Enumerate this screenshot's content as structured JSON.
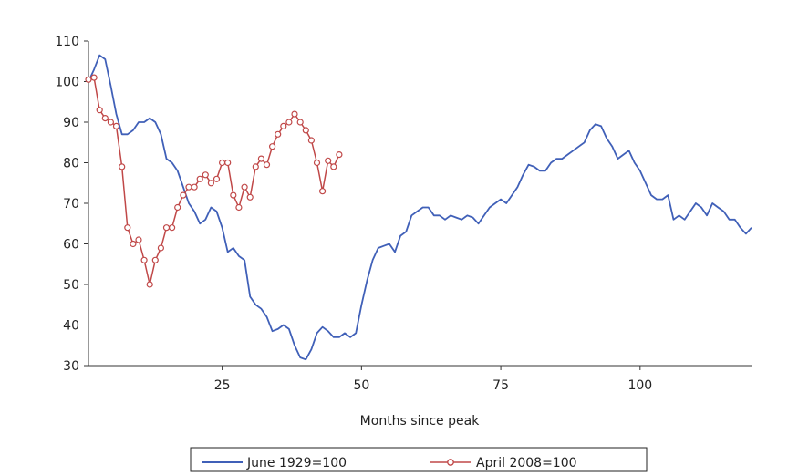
{
  "chart_data": {
    "type": "line",
    "title": "",
    "xlabel": "Months since peak",
    "ylabel": "",
    "xlim": [
      1,
      120
    ],
    "ylim": [
      30,
      110
    ],
    "xticks": [
      25,
      50,
      75,
      100
    ],
    "yticks": [
      30,
      40,
      50,
      60,
      70,
      80,
      90,
      100,
      110
    ],
    "grid": false,
    "legend": {
      "position": "bottom"
    },
    "series": [
      {
        "name": "June 1929=100",
        "color": "#4060b8",
        "marker": "none",
        "x": [
          1,
          2,
          3,
          4,
          5,
          6,
          7,
          8,
          9,
          10,
          11,
          12,
          13,
          14,
          15,
          16,
          17,
          18,
          19,
          20,
          21,
          22,
          23,
          24,
          25,
          26,
          27,
          28,
          29,
          30,
          31,
          32,
          33,
          34,
          35,
          36,
          37,
          38,
          39,
          40,
          41,
          42,
          43,
          44,
          45,
          46,
          47,
          48,
          49,
          50,
          51,
          52,
          53,
          54,
          55,
          56,
          57,
          58,
          59,
          60,
          61,
          62,
          63,
          64,
          65,
          66,
          67,
          68,
          69,
          70,
          71,
          72,
          73,
          74,
          75,
          76,
          77,
          78,
          79,
          80,
          81,
          82,
          83,
          84,
          85,
          86,
          87,
          88,
          89,
          90,
          91,
          92,
          93,
          94,
          95,
          96,
          97,
          98,
          99,
          100,
          101,
          102,
          103,
          104,
          105,
          106,
          107,
          108,
          109,
          110,
          111,
          112,
          113,
          114,
          115,
          116,
          117,
          118,
          119,
          120
        ],
        "y": [
          100,
          103,
          106.5,
          105.5,
          99,
          92,
          87,
          87,
          88,
          90,
          90,
          91,
          90,
          87,
          81,
          80,
          78,
          74,
          70,
          68,
          65,
          66,
          69,
          68,
          64,
          58,
          59,
          57,
          56,
          47,
          45,
          44,
          42,
          38.5,
          39,
          40,
          39,
          35,
          32,
          31.5,
          34,
          38,
          39.5,
          38.5,
          37,
          37,
          38,
          37,
          38,
          45,
          51,
          56,
          59,
          59.5,
          60,
          58,
          62,
          63,
          67,
          68,
          69,
          69,
          67,
          67,
          66,
          67,
          66.5,
          66,
          67,
          66.5,
          65,
          67,
          69,
          70,
          71,
          70,
          72,
          74,
          77,
          79.5,
          79,
          78,
          78,
          80,
          81,
          81,
          82,
          83,
          84,
          85,
          88,
          89.5,
          89,
          86,
          84,
          81,
          82,
          83,
          80,
          78,
          75,
          72,
          71,
          71,
          72,
          66,
          67,
          66,
          68,
          70,
          69,
          67,
          70,
          69,
          68,
          66,
          66,
          64,
          62.5,
          64
        ]
      },
      {
        "name": "April 2008=100",
        "color": "#c04848",
        "marker": "circle",
        "x": [
          1,
          2,
          3,
          4,
          5,
          6,
          7,
          8,
          9,
          10,
          11,
          12,
          13,
          14,
          15,
          16,
          17,
          18,
          19,
          20,
          21,
          22,
          23,
          24,
          25,
          26,
          27,
          28,
          29,
          30,
          31,
          32,
          33,
          34,
          35,
          36,
          37,
          38,
          39,
          40,
          41,
          42,
          43,
          44,
          45,
          46
        ],
        "y": [
          100.5,
          101,
          93,
          91,
          90,
          89,
          79,
          64,
          60,
          61,
          56,
          50,
          56,
          59,
          64,
          64,
          69,
          72,
          74,
          74,
          76,
          77,
          75,
          76,
          80,
          80,
          72,
          69,
          74,
          71.5,
          79,
          81,
          79.5,
          84,
          87,
          89,
          90,
          92,
          90,
          88,
          85.5,
          80,
          73,
          80.5,
          79,
          82
        ]
      }
    ]
  }
}
